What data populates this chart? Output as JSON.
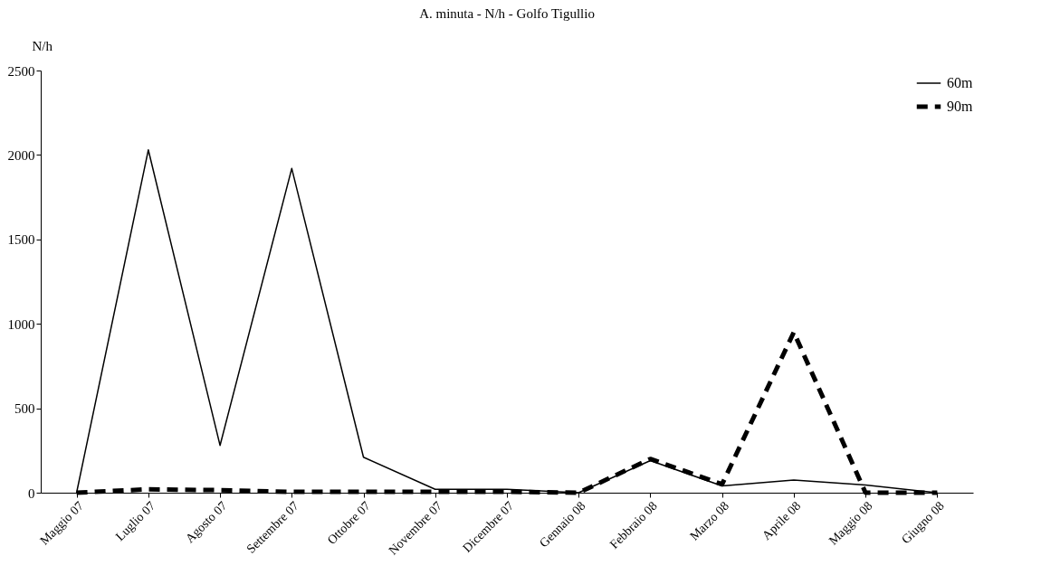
{
  "chart_data": {
    "type": "line",
    "title": "A. minuta - N/h - Golfo Tigullio",
    "ylabel": "N/h",
    "categories": [
      "Maggio 07",
      "Luglio 07",
      "Agosto 07",
      "Settembre 07",
      "Ottobre 07",
      "Novembre 07",
      "Dicembre 07",
      "Gennaio 08",
      "Febbraio 08",
      "Marzo 08",
      "Aprile 08",
      "Maggio 08",
      "Giugno 08"
    ],
    "series": [
      {
        "name": "60m",
        "color": "#000000",
        "line_style": "solid",
        "values": [
          0,
          2030,
          280,
          1920,
          210,
          20,
          20,
          0,
          190,
          40,
          75,
          45,
          0
        ]
      },
      {
        "name": "90m",
        "color": "#000000",
        "line_style": "dashed",
        "values": [
          0,
          20,
          15,
          5,
          5,
          5,
          5,
          0,
          200,
          50,
          950,
          0,
          0
        ]
      }
    ],
    "ylim": [
      0,
      2500
    ],
    "yticks": [
      0,
      500,
      1000,
      1500,
      2000,
      2500
    ],
    "grid": false,
    "legend": "top right",
    "marker": "none"
  }
}
